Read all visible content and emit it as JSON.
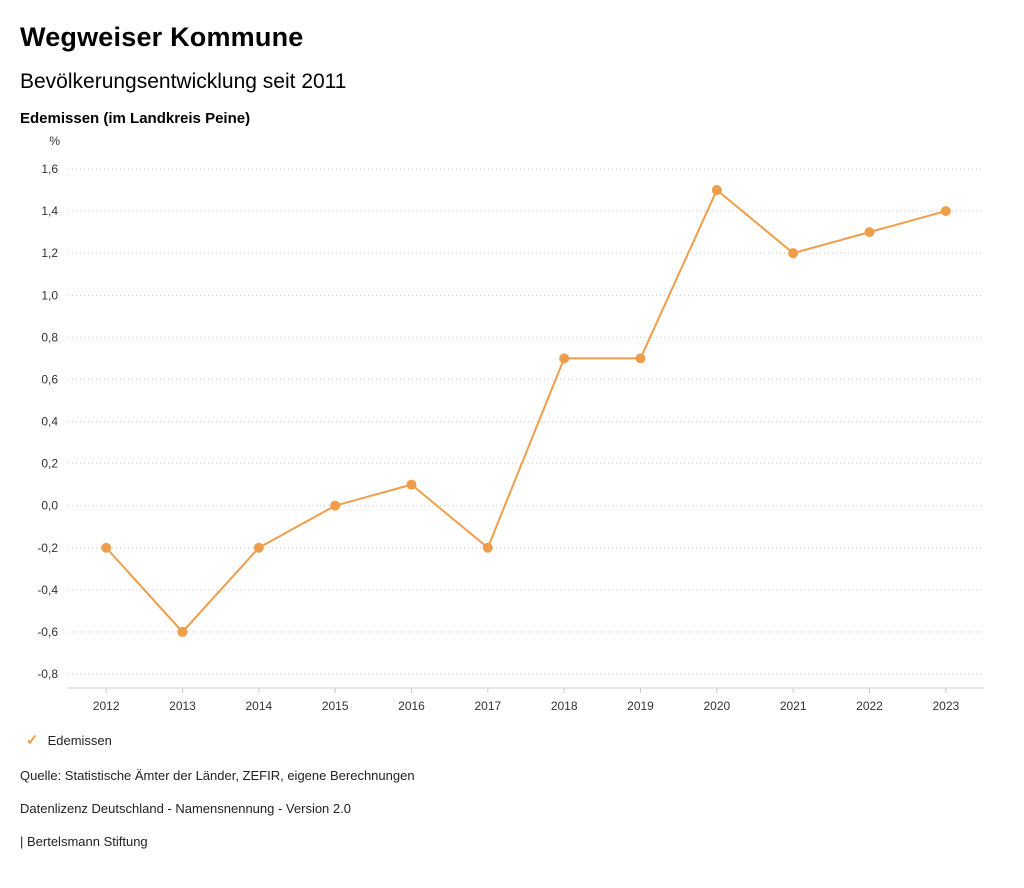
{
  "header": {
    "title": "Wegweiser Kommune",
    "subtitle": "Bevölkerungsentwicklung seit 2011",
    "location": "Edemissen (im Landkreis Peine)"
  },
  "chart_data": {
    "type": "line",
    "title": "Bevölkerungsentwicklung seit 2011",
    "unit_label": "%",
    "categories": [
      "2012",
      "2013",
      "2014",
      "2015",
      "2016",
      "2017",
      "2018",
      "2019",
      "2020",
      "2021",
      "2022",
      "2023"
    ],
    "series": [
      {
        "name": "Edemissen",
        "color": "#f09d4b",
        "marker": "circle",
        "values": [
          -0.2,
          -0.6,
          -0.2,
          0.0,
          0.1,
          -0.2,
          0.7,
          0.7,
          1.5,
          1.2,
          1.3,
          1.4
        ]
      }
    ],
    "ylim": [
      -0.8,
      1.6
    ],
    "y_tick_step": 0.2,
    "y_tick_labels": [
      "-0,8",
      "-0,6",
      "-0,4",
      "-0,2",
      "0,0",
      "0,2",
      "0,4",
      "0,6",
      "0,8",
      "1,0",
      "1,2",
      "1,4",
      "1,6"
    ],
    "grid": "horizontal-dotted",
    "legend_position": "bottom-left"
  },
  "legend": {
    "check_icon": "✓",
    "label": "Edemissen",
    "color": "#f09d4b"
  },
  "footer": {
    "source": "Quelle: Statistische Ämter der Länder, ZEFIR, eigene Berechnungen",
    "license": "Datenlizenz Deutschland - Namensnennung - Version 2.0",
    "attribution": "| Bertelsmann Stiftung"
  }
}
